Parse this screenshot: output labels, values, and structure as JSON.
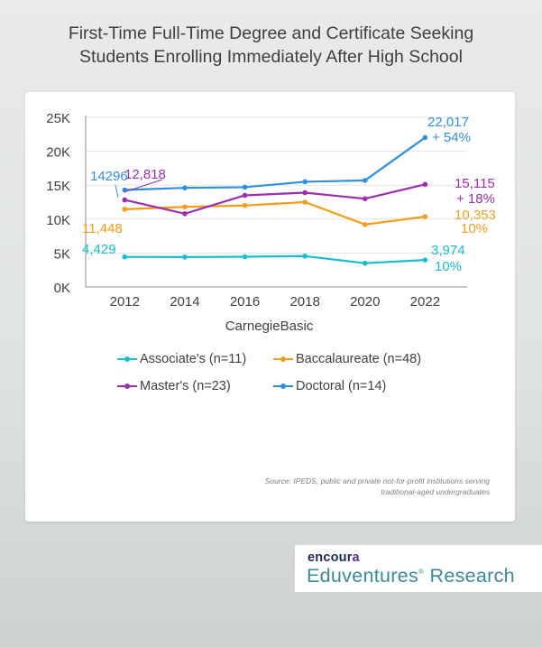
{
  "page": {
    "title_line1": "First-Time Full-Time Degree and Certificate Seeking",
    "title_line2": "Students Enrolling Immediately After High School"
  },
  "chart_data": {
    "type": "line",
    "xlabel": "CarnegieBasic",
    "ylabel": "",
    "x": [
      2012,
      2014,
      2016,
      2018,
      2020,
      2022
    ],
    "xlim": [
      2010.7,
      2023.4
    ],
    "ylim": [
      0,
      25000
    ],
    "y_ticks": [
      0,
      5000,
      10000,
      15000,
      20000,
      25000
    ],
    "y_tick_labels": [
      "0K",
      "5K",
      "10K",
      "15K",
      "20K",
      "25K"
    ],
    "grid": "horizontal",
    "legend_position": "bottom",
    "series": [
      {
        "name": "Associate's (n=11)",
        "color": "#17becf",
        "values": [
          4429,
          4400,
          4450,
          4550,
          3500,
          3974
        ],
        "start_label": "4,429",
        "end_label": [
          "3,974",
          "10%"
        ]
      },
      {
        "name": "Baccalaureate (n=48)",
        "color": "#f59c1a",
        "values": [
          11448,
          11800,
          12000,
          12500,
          9200,
          10353
        ],
        "start_label": "11,448",
        "end_label": [
          "10,353",
          "10%"
        ]
      },
      {
        "name": "Master's (n=23)",
        "color": "#9b2fae",
        "values": [
          12818,
          10800,
          13500,
          13900,
          13000,
          15115
        ],
        "start_label": "12,818",
        "end_label": [
          "15,115",
          "+ 18%"
        ]
      },
      {
        "name": "Doctoral (n=14)",
        "color": "#2f8fe0",
        "values": [
          14296,
          14600,
          14700,
          15500,
          15700,
          22017
        ],
        "start_label": "14296",
        "end_label": [
          "22,017",
          "+ 54%"
        ]
      }
    ]
  },
  "source_note": {
    "line1": "Source: IPEDS, public and private not-for-profit institutions serving",
    "line2": "traditional-aged undergraduates"
  },
  "brand": {
    "logo_main": "encour",
    "logo_accent": "a",
    "subtitle": "Eduventures",
    "subtitle_mark": "®",
    "subtitle_tail": " Research"
  }
}
